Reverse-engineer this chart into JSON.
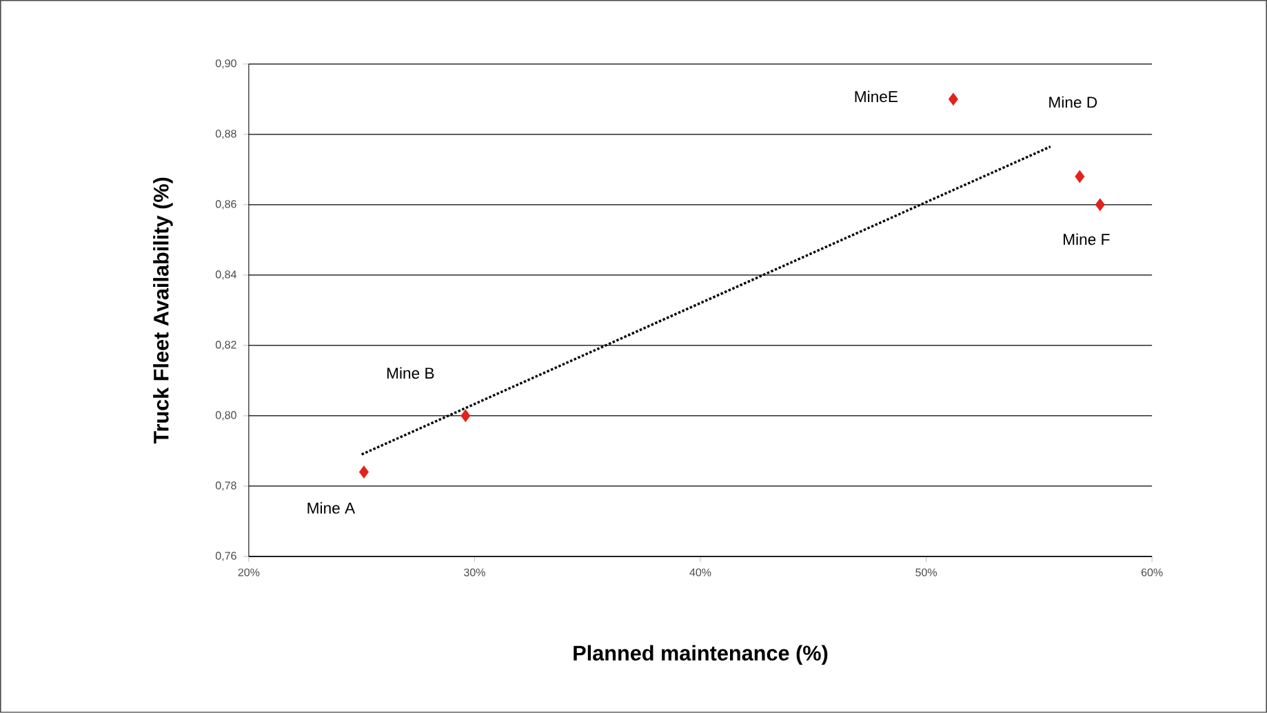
{
  "chart_data": {
    "type": "scatter",
    "xlabel": "Planned maintenance (%)",
    "ylabel": "Truck Fleet Availability (%)",
    "xlim": [
      20,
      60
    ],
    "ylim": [
      0.76,
      0.9
    ],
    "xticks": [
      {
        "value": 20,
        "label": "20%"
      },
      {
        "value": 30,
        "label": "30%"
      },
      {
        "value": 40,
        "label": "40%"
      },
      {
        "value": 50,
        "label": "50%"
      },
      {
        "value": 60,
        "label": "60%"
      }
    ],
    "yticks": [
      {
        "value": 0.76,
        "label": "0,76"
      },
      {
        "value": 0.78,
        "label": "0,78"
      },
      {
        "value": 0.8,
        "label": "0,80"
      },
      {
        "value": 0.82,
        "label": "0,82"
      },
      {
        "value": 0.84,
        "label": "0,84"
      },
      {
        "value": 0.86,
        "label": "0,86"
      },
      {
        "value": 0.88,
        "label": "0,88"
      },
      {
        "value": 0.9,
        "label": "0,90"
      }
    ],
    "grid": "y",
    "marker": "diamond",
    "series": [
      {
        "color": "#e3221c",
        "x": [
          25.1,
          29.6,
          51.2,
          56.8,
          57.7
        ],
        "values": [
          0.784,
          0.8,
          0.89,
          0.868,
          0.86
        ]
      },
      {
        "type": "line",
        "color": "#000000",
        "line_style": "dotted",
        "marker": "none",
        "x": [
          25.0,
          55.5
        ],
        "values": [
          0.789,
          0.8765
        ]
      }
    ],
    "annotations": [
      "Mine A",
      "Mine B",
      "MineE",
      "Mine D",
      "Mine F"
    ]
  }
}
